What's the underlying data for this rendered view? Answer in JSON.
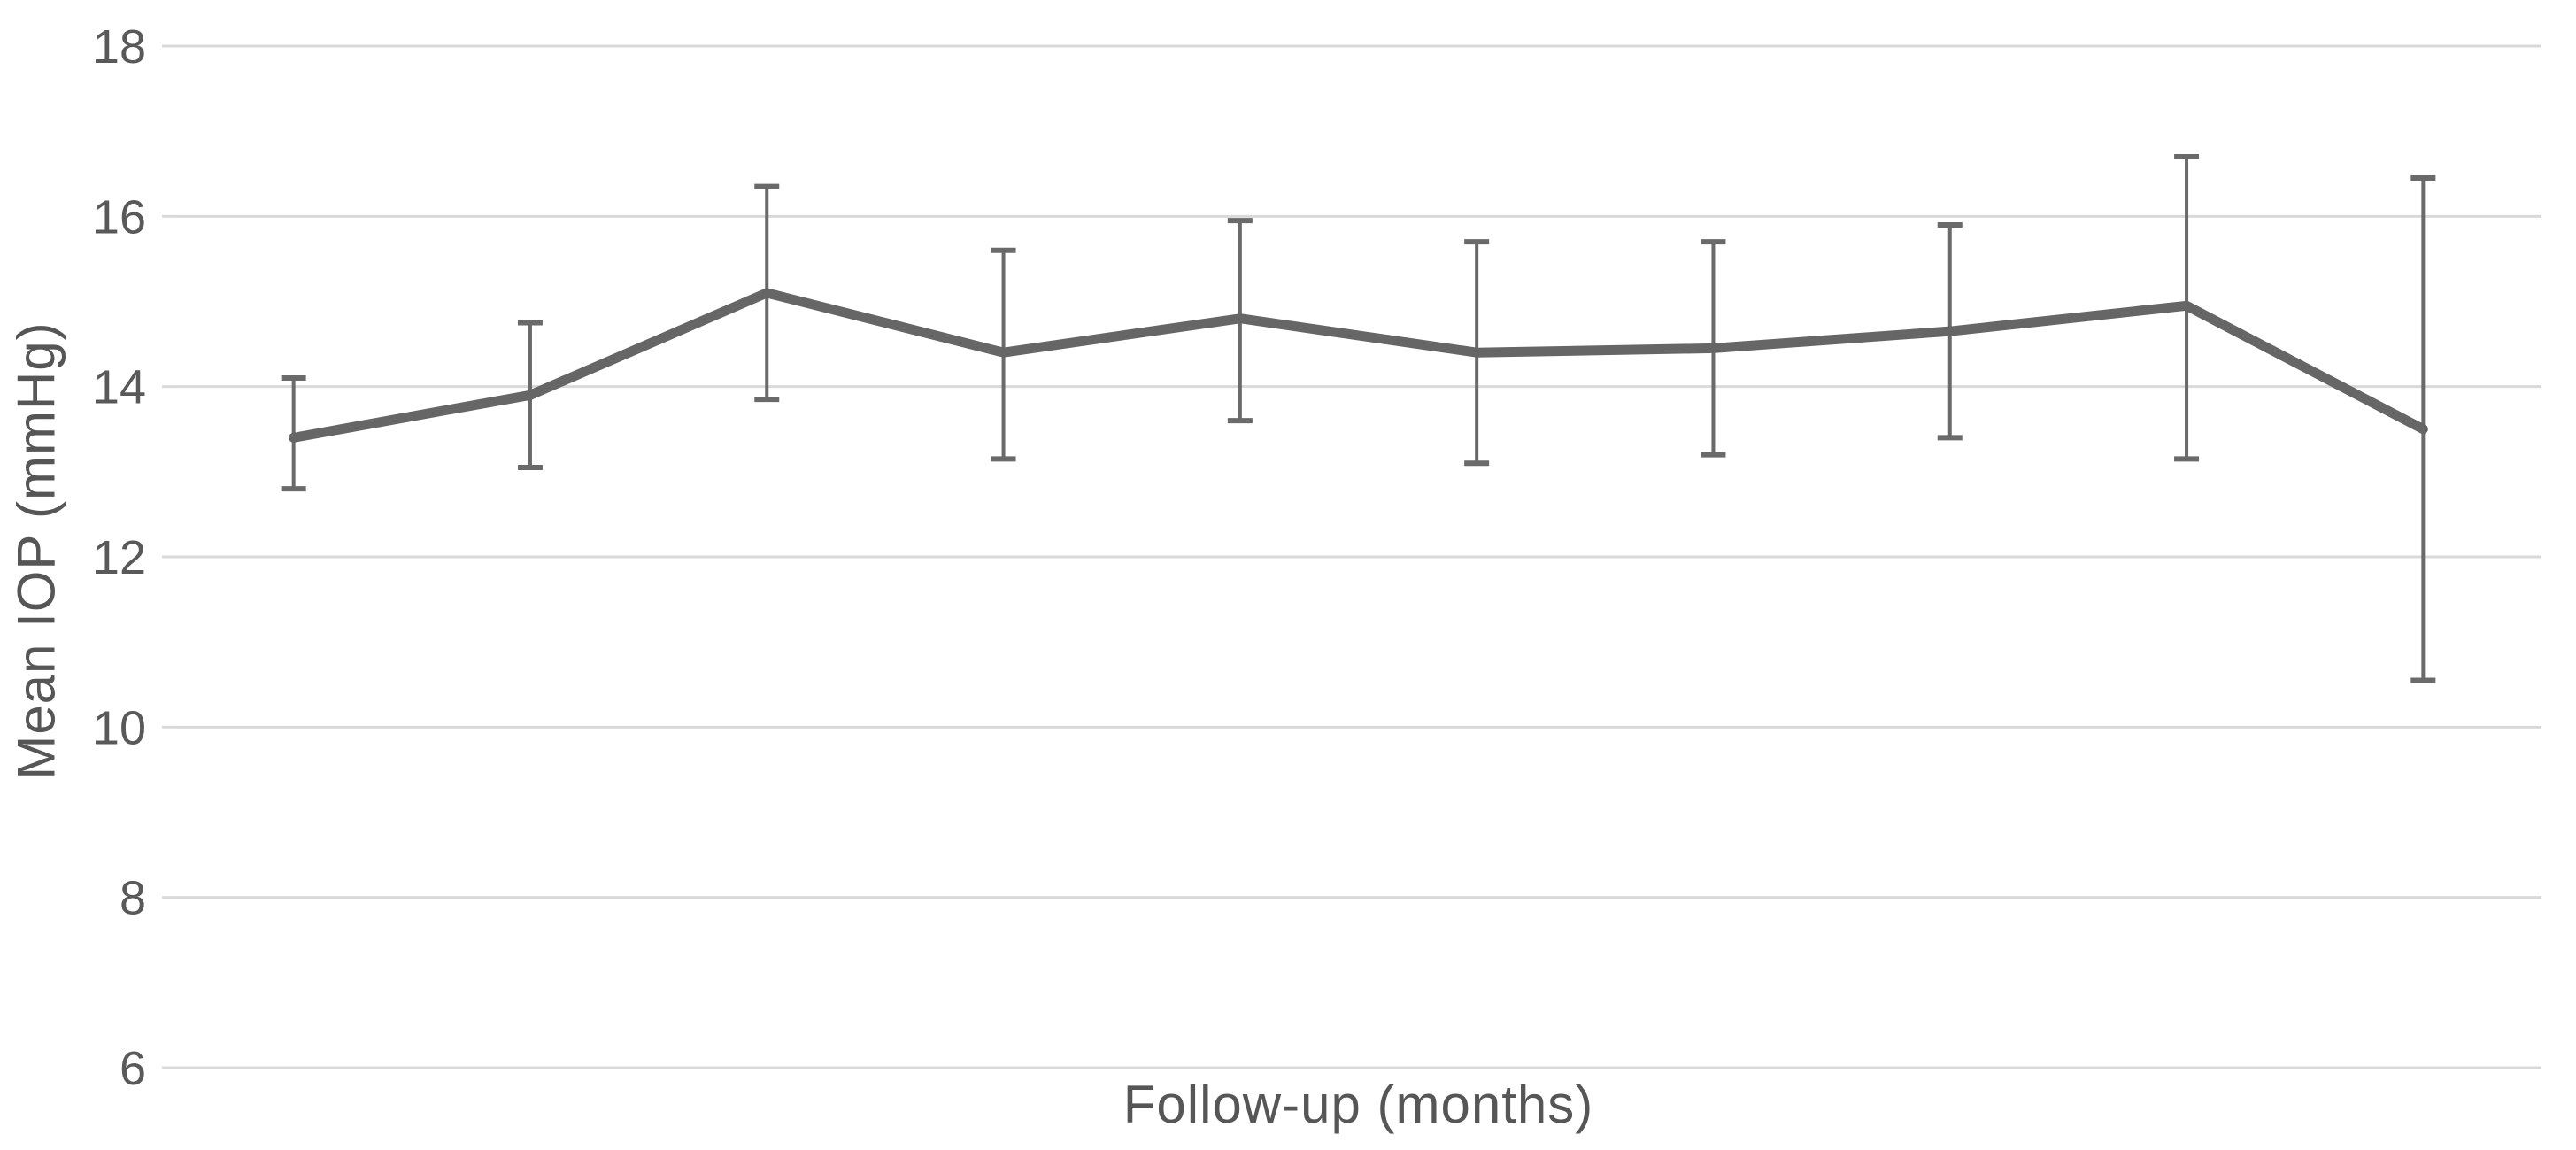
{
  "page": {
    "background": "#ffffff"
  },
  "chart_data": {
    "type": "line",
    "title": "",
    "xlabel": "Follow-up (months)",
    "ylabel": "Mean IOP (mmHg)",
    "ylim": [
      6,
      18
    ],
    "yticks": [
      18,
      16,
      14,
      12,
      10,
      8,
      6
    ],
    "ytick_step": 2,
    "x_tick_labels": [],
    "grid": "horizontal-gridlines-only",
    "legend": "none",
    "error_bars": true,
    "series": [
      {
        "name": "Mean IOP",
        "x": [
          1,
          2,
          3,
          4,
          5,
          6,
          7,
          8,
          9,
          10
        ],
        "values": [
          13.4,
          13.9,
          15.1,
          14.4,
          14.8,
          14.4,
          14.45,
          14.65,
          14.95,
          13.5
        ],
        "error_low": [
          12.8,
          13.05,
          13.85,
          13.15,
          13.6,
          13.1,
          13.2,
          13.4,
          13.15,
          10.55
        ],
        "error_high": [
          14.1,
          14.75,
          16.35,
          15.6,
          15.95,
          15.7,
          15.7,
          15.9,
          16.7,
          16.45
        ]
      }
    ],
    "colors": {
      "line": "#666666",
      "error_bar": "#6a6a6a",
      "gridline": "#d9d9d9",
      "tick_label": "#595959",
      "axis_label": "#565656",
      "background": "#ffffff"
    }
  }
}
